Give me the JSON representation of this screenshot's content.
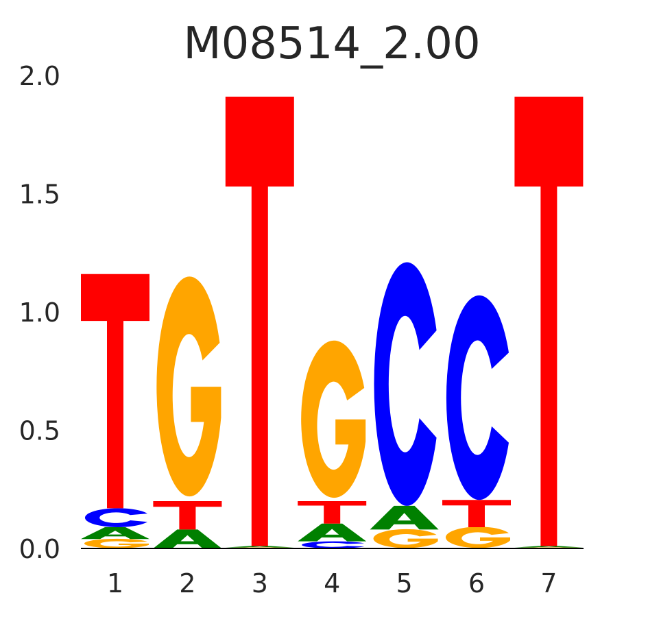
{
  "chart_data": {
    "type": "sequence-logo",
    "title": "M08514_2.00",
    "xlabel": "",
    "ylabel": "",
    "ylim": [
      0,
      2.0
    ],
    "yticks": [
      "0.0",
      "0.5",
      "1.0",
      "1.5",
      "2.0"
    ],
    "ytick_values": [
      0,
      0.5,
      1.0,
      1.5,
      2.0
    ],
    "categories": [
      "1",
      "2",
      "3",
      "4",
      "5",
      "6",
      "7"
    ],
    "colors": {
      "A": "#008000",
      "C": "#0000ff",
      "G": "#ffa500",
      "T": "#ff0000"
    },
    "positions": [
      {
        "pos": "1",
        "stack": [
          {
            "letter": "G",
            "height": 0.04
          },
          {
            "letter": "A",
            "height": 0.05
          },
          {
            "letter": "C",
            "height": 0.08
          },
          {
            "letter": "T",
            "height": 0.99
          }
        ]
      },
      {
        "pos": "2",
        "stack": [
          {
            "letter": "A",
            "height": 0.08
          },
          {
            "letter": "T",
            "height": 0.12
          },
          {
            "letter": "G",
            "height": 0.93
          }
        ]
      },
      {
        "pos": "3",
        "stack": [
          {
            "letter": "G",
            "height": 0.004
          },
          {
            "letter": "A",
            "height": 0.006
          },
          {
            "letter": "T",
            "height": 1.9
          }
        ]
      },
      {
        "pos": "4",
        "stack": [
          {
            "letter": "C",
            "height": 0.03
          },
          {
            "letter": "A",
            "height": 0.075
          },
          {
            "letter": "T",
            "height": 0.095
          },
          {
            "letter": "G",
            "height": 0.665
          }
        ]
      },
      {
        "pos": "5",
        "stack": [
          {
            "letter": "G",
            "height": 0.08
          },
          {
            "letter": "A",
            "height": 0.1
          },
          {
            "letter": "C",
            "height": 1.03
          }
        ]
      },
      {
        "pos": "6",
        "stack": [
          {
            "letter": "G",
            "height": 0.09
          },
          {
            "letter": "T",
            "height": 0.115
          },
          {
            "letter": "C",
            "height": 0.865
          }
        ]
      },
      {
        "pos": "7",
        "stack": [
          {
            "letter": "G",
            "height": 0.004
          },
          {
            "letter": "A",
            "height": 0.006
          },
          {
            "letter": "T",
            "height": 1.9
          }
        ]
      }
    ]
  }
}
